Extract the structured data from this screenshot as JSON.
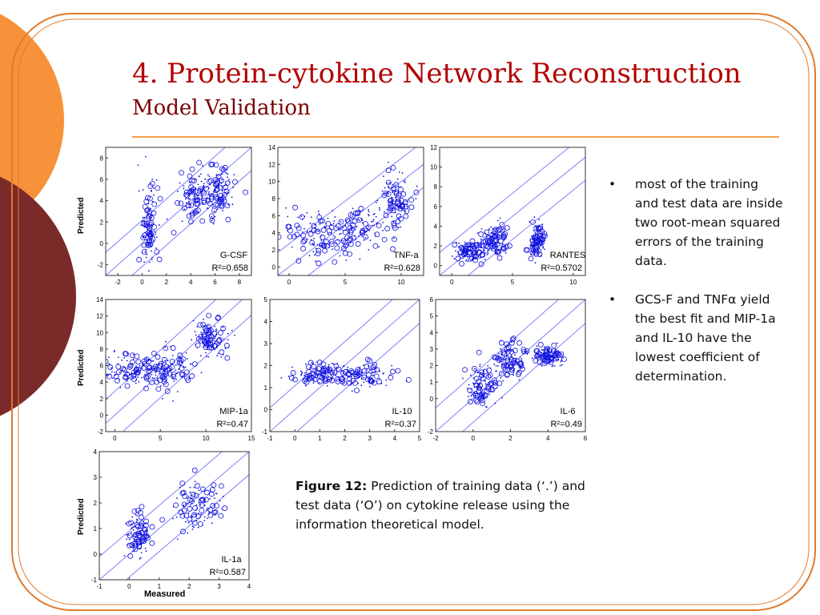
{
  "slide": {
    "title": "4. Protein-cytokine Network Reconstruction",
    "subtitle": "Model Validation"
  },
  "axes_text": {
    "ylabel": "Predicted",
    "xlabel": "Measured"
  },
  "bullets": [
    {
      "marker": "•",
      "text": "most of the training and test data are inside two root-mean squared errors of the training data."
    },
    {
      "marker": "•",
      "text": "GCS-F and TNFα yield the best fit and MIP-1a and IL-10 have the lowest coefficient of determination."
    }
  ],
  "caption": {
    "label": "Figure 12:",
    "text": "Prediction of training data (‘.’) and test data (‘O’) on cytokine release using the information theoretical model."
  },
  "colors": {
    "title": "#b30000",
    "subtitle": "#7a0000",
    "rule": "#f0a24a",
    "points": "#1010e0",
    "lines": "#8080ff",
    "orange": "#f7923a",
    "maroon": "#7b2a2a"
  },
  "chart_data": [
    {
      "type": "scatter",
      "name": "G-CSF",
      "r2": "R²=0.658",
      "xlim": [
        -3,
        9
      ],
      "ylim": [
        -3,
        9
      ],
      "xticks": [
        "-2",
        "0",
        "2",
        "4",
        "6",
        "8"
      ],
      "yticks": [
        "-2",
        "0",
        "2",
        "4",
        "6",
        "8"
      ],
      "clusters": [
        [
          0.5,
          1.5,
          0.4,
          2.0
        ],
        [
          4.5,
          4.5,
          0.7,
          1.0
        ],
        [
          6.3,
          5.0,
          0.7,
          1.2
        ]
      ]
    },
    {
      "type": "scatter",
      "name": "TNF-a",
      "r2": "R²=0.628",
      "xlim": [
        -1,
        12
      ],
      "ylim": [
        -1,
        14
      ],
      "xticks": [
        "0",
        "5",
        "10"
      ],
      "yticks": [
        "0",
        "2",
        "4",
        "6",
        "8",
        "10",
        "12",
        "14"
      ],
      "clusters": [
        [
          2.5,
          3.5,
          1.5,
          1.5
        ],
        [
          6.0,
          4.5,
          1.5,
          1.5
        ],
        [
          9.5,
          8.0,
          0.7,
          1.5
        ]
      ]
    },
    {
      "type": "scatter",
      "name": "RANTES",
      "r2": "R²=0.5702",
      "xlim": [
        -1,
        11
      ],
      "ylim": [
        -1,
        12
      ],
      "xticks": [
        "0",
        "5",
        "10"
      ],
      "yticks": [
        "0",
        "2",
        "4",
        "6",
        "8",
        "10",
        "12"
      ],
      "clusters": [
        [
          1.5,
          1.5,
          0.6,
          0.5
        ],
        [
          3.5,
          2.5,
          0.6,
          0.8
        ],
        [
          7.0,
          2.5,
          0.3,
          0.8
        ]
      ]
    },
    {
      "type": "scatter",
      "name": "MIP-1a",
      "r2": "R²=0.47",
      "xlim": [
        -1,
        15
      ],
      "ylim": [
        -2,
        14
      ],
      "xticks": [
        "0",
        "5",
        "10",
        "15"
      ],
      "yticks": [
        "-2",
        "0",
        "2",
        "4",
        "6",
        "8",
        "10",
        "12",
        "14"
      ],
      "clusters": [
        [
          2.0,
          5.5,
          1.5,
          1.0
        ],
        [
          6.0,
          5.5,
          1.2,
          1.2
        ],
        [
          10.5,
          9.5,
          1.0,
          1.2
        ]
      ]
    },
    {
      "type": "scatter",
      "name": "IL-10",
      "r2": "R²=0.37",
      "xlim": [
        -1,
        5
      ],
      "ylim": [
        -1,
        5
      ],
      "xticks": [
        "-1",
        "0",
        "1",
        "2",
        "3",
        "4",
        "5"
      ],
      "yticks": [
        "-1",
        "0",
        "1",
        "2",
        "3",
        "4",
        "5"
      ],
      "clusters": [
        [
          1.0,
          1.6,
          0.6,
          0.25
        ],
        [
          2.8,
          1.6,
          0.6,
          0.25
        ]
      ]
    },
    {
      "type": "scatter",
      "name": "IL-6",
      "r2": "R²=0.49",
      "xlim": [
        -2,
        6
      ],
      "ylim": [
        -2,
        6
      ],
      "xticks": [
        "-2",
        "0",
        "2",
        "4",
        "6"
      ],
      "yticks": [
        "-2",
        "0",
        "1",
        "2",
        "3",
        "4",
        "5",
        "6"
      ],
      "clusters": [
        [
          0.5,
          0.8,
          0.4,
          0.6
        ],
        [
          2.0,
          2.3,
          0.4,
          0.5
        ],
        [
          4.0,
          2.6,
          0.4,
          0.3
        ]
      ]
    },
    {
      "type": "scatter",
      "name": "IL-1a",
      "r2": "R²=0.587",
      "xlim": [
        -1,
        4
      ],
      "ylim": [
        -1,
        4
      ],
      "xticks": [
        "-1",
        "0",
        "1",
        "2",
        "3",
        "4"
      ],
      "yticks": [
        "-1",
        "0",
        "1",
        "2",
        "3",
        "4"
      ],
      "clusters": [
        [
          0.3,
          0.7,
          0.2,
          0.4
        ],
        [
          2.2,
          1.9,
          0.4,
          0.5
        ]
      ]
    }
  ]
}
